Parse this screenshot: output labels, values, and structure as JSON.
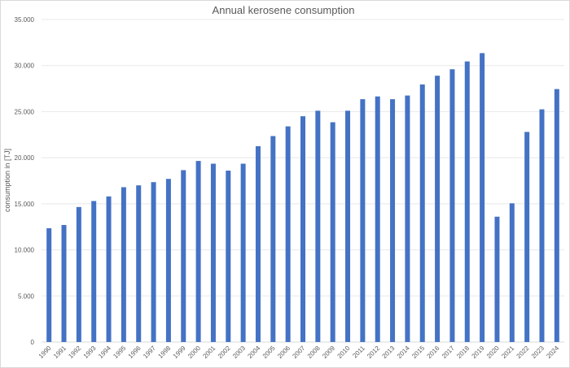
{
  "chart_data": {
    "type": "bar",
    "title": "Annual kerosene consumption",
    "xlabel": "",
    "ylabel": "consumption in [TJ]",
    "ylim": [
      0,
      35000
    ],
    "yticks": [
      "0",
      "5.000",
      "10.000",
      "15.000",
      "20.000",
      "25.000",
      "30.000",
      "35.000"
    ],
    "grid": true,
    "bar_color": "#4472c4",
    "categories": [
      "1990",
      "1991",
      "1992",
      "1993",
      "1994",
      "1995",
      "1996",
      "1997",
      "1998",
      "1999",
      "2000",
      "2001",
      "2002",
      "2003",
      "2004",
      "2005",
      "2006",
      "2007",
      "2008",
      "2009",
      "2010",
      "2011",
      "2012",
      "2013",
      "2014",
      "2015",
      "2016",
      "2017",
      "2018",
      "2019",
      "2020",
      "2021",
      "2022",
      "2023",
      "2024"
    ],
    "values": [
      12350,
      12700,
      14650,
      15300,
      15800,
      16800,
      17000,
      17350,
      17700,
      18650,
      19650,
      19350,
      18600,
      19350,
      21250,
      22350,
      23400,
      24500,
      25100,
      23850,
      25100,
      26350,
      26650,
      26350,
      26750,
      27950,
      28900,
      29600,
      30450,
      31350,
      13600,
      15050,
      22800,
      25250,
      27450
    ]
  }
}
